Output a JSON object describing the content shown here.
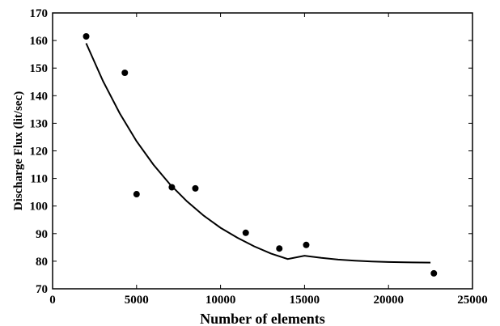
{
  "chart_data": {
    "type": "scatter",
    "title": "",
    "xlabel": "Number of elements",
    "ylabel": "Discharge Flux (lit/sec)",
    "xlim": [
      0,
      25000
    ],
    "ylim": [
      70,
      170
    ],
    "x_ticks": [
      0,
      5000,
      10000,
      15000,
      20000,
      25000
    ],
    "y_ticks": [
      70,
      80,
      90,
      100,
      110,
      120,
      130,
      140,
      150,
      160,
      170
    ],
    "grid": false,
    "legend": "none",
    "series": [
      {
        "type": "scatter",
        "marker": "filled-circle",
        "color": "#000000",
        "points": [
          {
            "x": 2000,
            "y": 161.5
          },
          {
            "x": 4300,
            "y": 148.3
          },
          {
            "x": 5000,
            "y": 104.3
          },
          {
            "x": 7100,
            "y": 106.8
          },
          {
            "x": 8500,
            "y": 106.4
          },
          {
            "x": 11500,
            "y": 90.3
          },
          {
            "x": 13500,
            "y": 84.6
          },
          {
            "x": 15100,
            "y": 85.9
          },
          {
            "x": 22700,
            "y": 75.6
          }
        ]
      },
      {
        "type": "line",
        "color": "#000000",
        "points": [
          {
            "x": 2000,
            "y": 159.0
          },
          {
            "x": 3000,
            "y": 145.3
          },
          {
            "x": 4000,
            "y": 133.6
          },
          {
            "x": 5000,
            "y": 123.5
          },
          {
            "x": 6000,
            "y": 115.0
          },
          {
            "x": 7000,
            "y": 107.8
          },
          {
            "x": 8000,
            "y": 101.7
          },
          {
            "x": 9000,
            "y": 96.5
          },
          {
            "x": 10000,
            "y": 92.1
          },
          {
            "x": 11000,
            "y": 88.5
          },
          {
            "x": 12000,
            "y": 85.4
          },
          {
            "x": 13000,
            "y": 82.8
          },
          {
            "x": 14000,
            "y": 80.8
          },
          {
            "x": 15000,
            "y": 82.0
          },
          {
            "x": 16000,
            "y": 81.2
          },
          {
            "x": 17000,
            "y": 80.6
          },
          {
            "x": 18000,
            "y": 80.2
          },
          {
            "x": 19000,
            "y": 79.9
          },
          {
            "x": 20000,
            "y": 79.7
          },
          {
            "x": 21000,
            "y": 79.6
          },
          {
            "x": 22500,
            "y": 79.5
          }
        ]
      }
    ]
  }
}
